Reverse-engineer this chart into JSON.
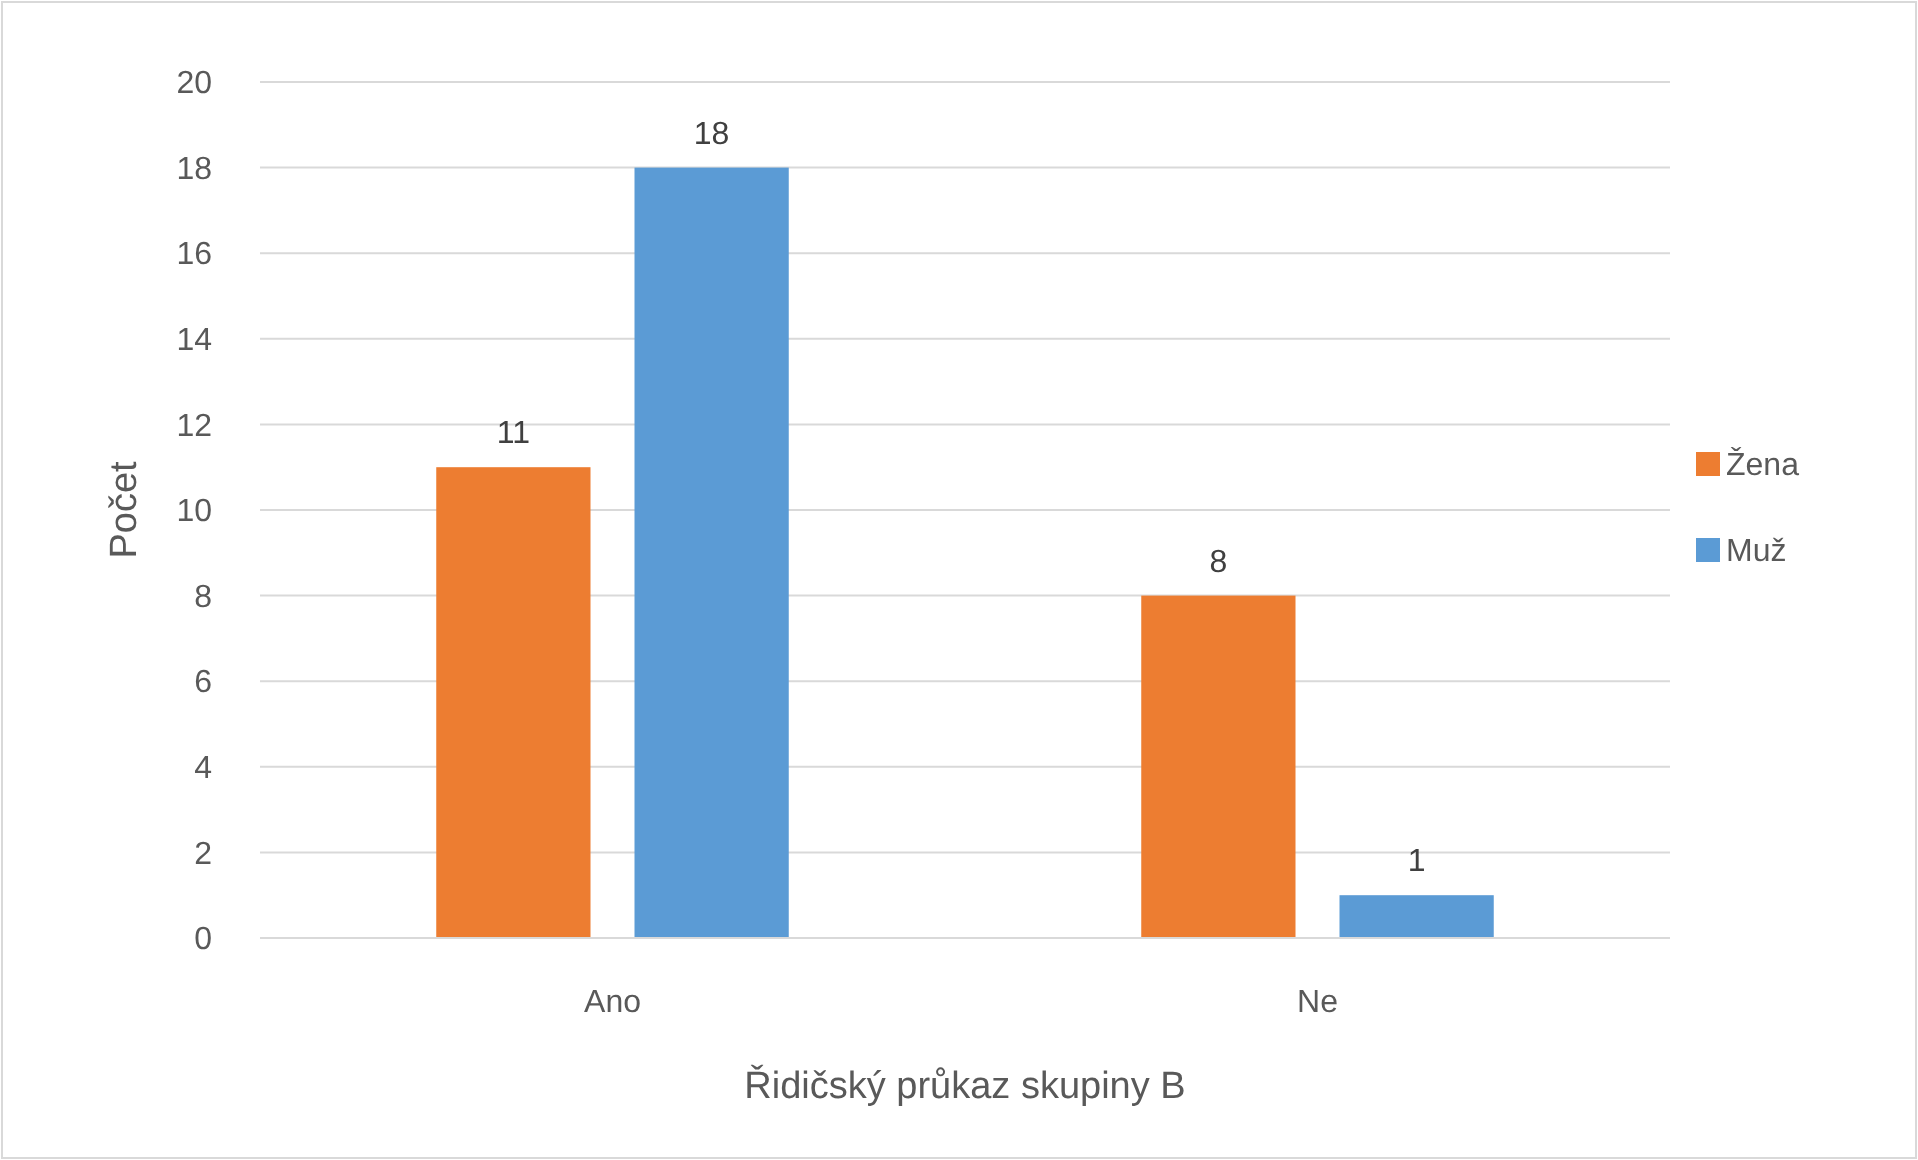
{
  "chart_data": {
    "type": "bar",
    "xlabel": "Řidičský průkaz skupiny B",
    "ylabel": "Počet",
    "categories": [
      "Ano",
      "Ne"
    ],
    "series": [
      {
        "name": "Žena",
        "color": "#ed7d31",
        "values": [
          11,
          8
        ]
      },
      {
        "name": "Muž",
        "color": "#5b9bd5",
        "values": [
          18,
          1
        ]
      }
    ],
    "ylim": [
      0,
      20
    ],
    "yticks": [
      0,
      2,
      4,
      6,
      8,
      10,
      12,
      14,
      16,
      18,
      20
    ],
    "grid": "y",
    "legend": "right",
    "data_labels": true
  }
}
